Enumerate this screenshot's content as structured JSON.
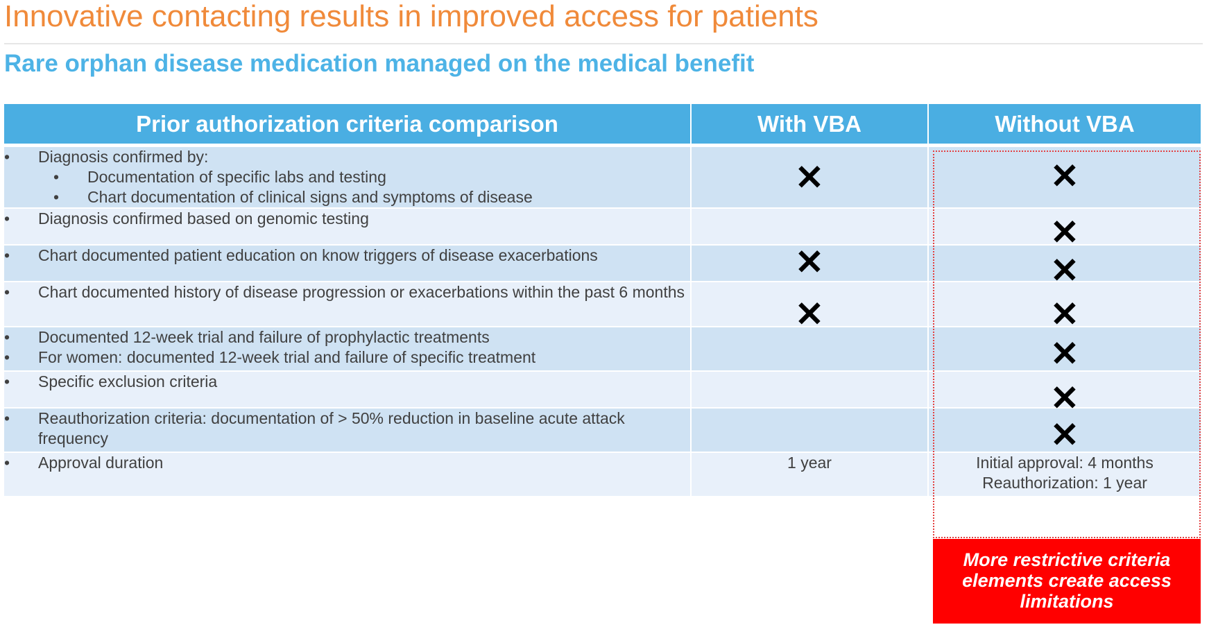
{
  "slide": {
    "title": "Innovative contacting results in improved access for patients",
    "subtitle": "Rare orphan disease medication managed on the medical benefit"
  },
  "table": {
    "headers": [
      "Prior authorization criteria comparison",
      "With VBA",
      "Without VBA"
    ],
    "mark_glyph": "✕",
    "rows": [
      {
        "criteria": [
          {
            "text": "Diagnosis confirmed by:",
            "subitems": [
              "Documentation of specific labs and testing",
              "Chart documentation of clinical signs and symptoms of disease"
            ]
          }
        ],
        "with_vba": "x",
        "without_vba": "x"
      },
      {
        "criteria": [
          {
            "text": "Diagnosis confirmed based on genomic testing"
          }
        ],
        "with_vba": "",
        "without_vba": "x"
      },
      {
        "criteria": [
          {
            "text": "Chart documented patient education on know triggers of disease exacerbations"
          }
        ],
        "with_vba": "x",
        "without_vba": "x"
      },
      {
        "criteria": [
          {
            "text": "Chart documented history of disease progression or exacerbations within the past 6 months"
          }
        ],
        "with_vba": "x",
        "without_vba": "x"
      },
      {
        "criteria": [
          {
            "text": "Documented 12-week trial and failure of prophylactic treatments"
          },
          {
            "text": "For women: documented 12-week trial and failure of specific treatment"
          }
        ],
        "with_vba": "",
        "without_vba": "x"
      },
      {
        "criteria": [
          {
            "text": "Specific exclusion criteria"
          }
        ],
        "with_vba": "",
        "without_vba": "x"
      },
      {
        "criteria": [
          {
            "text": "Reauthorization criteria: documentation of > 50% reduction in baseline acute attack frequency"
          }
        ],
        "with_vba": "",
        "without_vba": "x"
      },
      {
        "criteria": [
          {
            "text": "Approval duration"
          }
        ],
        "with_vba_text": "1 year",
        "without_vba_text": [
          "Initial approval: 4 months",
          "Reauthorization: 1 year"
        ]
      }
    ]
  },
  "callout": {
    "lines": [
      "More restrictive criteria",
      "elements create access",
      "limitations"
    ]
  },
  "colors": {
    "title": "#f08a3a",
    "subtitle": "#4db3e6",
    "header_bg": "#4aaee2",
    "row_dark": "#cfe2f3",
    "row_light": "#e8f0fa",
    "callout_bg": "#ff0000",
    "dotted_border": "#e34040"
  }
}
